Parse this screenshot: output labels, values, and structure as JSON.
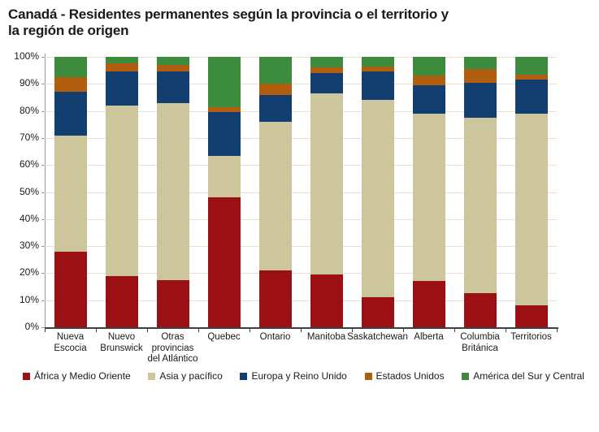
{
  "title": {
    "line1": "Canadá - Residentes permanentes según la provincia o el territorio y",
    "line2": "la región de origen"
  },
  "chart_data": {
    "type": "bar",
    "stacked": true,
    "unit": "percent",
    "ylim": [
      0,
      100
    ],
    "grid": "horizontal",
    "legend_position": "bottom",
    "y_ticks": [
      "0%",
      "10%",
      "20%",
      "30%",
      "40%",
      "50%",
      "60%",
      "70%",
      "80%",
      "90%",
      "100%"
    ],
    "categories": [
      "Nueva Escocia",
      "Nuevo Brunswick",
      "Otras provincias del Atlántico",
      "Quebec",
      "Ontario",
      "Manitoba",
      "Saskatchewan",
      "Alberta",
      "Columbia Británica",
      "Territorios"
    ],
    "category_label_lines": [
      [
        "Nueva",
        "Escocia"
      ],
      [
        "Nuevo",
        "Brunswick"
      ],
      [
        "Otras",
        "provincias",
        "del Atlántico"
      ],
      [
        "Quebec"
      ],
      [
        "Ontario"
      ],
      [
        "Manitoba"
      ],
      [
        "Saskatchewan"
      ],
      [
        "Alberta"
      ],
      [
        "Columbia",
        "Británica"
      ],
      [
        "Territorios"
      ]
    ],
    "series": [
      {
        "name": "África y Medio Oriente",
        "color": "#9A1014",
        "values": [
          28,
          19,
          17.5,
          48,
          21,
          19.5,
          11,
          17,
          12.5,
          8
        ]
      },
      {
        "name": "Asia y pacífico",
        "color": "#CDC69D",
        "values": [
          43,
          63,
          65.5,
          15.5,
          55,
          67,
          73,
          62,
          65,
          71
        ]
      },
      {
        "name": "Europa y Reino Unido",
        "color": "#133E70",
        "values": [
          16,
          12.5,
          11.5,
          16,
          10,
          7.5,
          10.5,
          10.5,
          13,
          12.5
        ]
      },
      {
        "name": "Estados Unidos",
        "color": "#B25E10",
        "values": [
          5.5,
          3,
          2.5,
          2,
          4,
          2,
          2,
          3.5,
          5,
          2
        ]
      },
      {
        "name": "América del Sur y Central",
        "color": "#3D8C3D",
        "values": [
          7.5,
          2.5,
          3,
          18.5,
          10,
          4,
          3.5,
          7,
          4.5,
          6.5
        ]
      }
    ]
  },
  "colors": {
    "gridline": "#E9E2CB",
    "y_axis": "#9B9B9B",
    "x_axis": "#3F3F3F",
    "text": "#1A1A1A",
    "background": "#FFFFFF"
  }
}
